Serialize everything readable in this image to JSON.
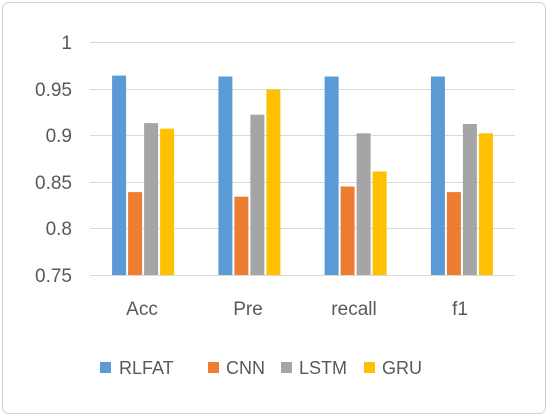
{
  "chart_data": {
    "type": "bar",
    "categories": [
      "Acc",
      "Pre",
      "recall",
      "f1"
    ],
    "series": [
      {
        "name": "RLFAT",
        "color": "#5b9bd5",
        "values": [
          0.964,
          0.963,
          0.963,
          0.963
        ]
      },
      {
        "name": "CNN",
        "color": "#ed7d31",
        "values": [
          0.839,
          0.834,
          0.845,
          0.839
        ]
      },
      {
        "name": "LSTM",
        "color": "#a5a5a5",
        "values": [
          0.913,
          0.922,
          0.902,
          0.912
        ]
      },
      {
        "name": "GRU",
        "color": "#ffc000",
        "values": [
          0.907,
          0.949,
          0.861,
          0.902
        ]
      }
    ],
    "yticks": [
      "1",
      "0.95",
      "0.9",
      "0.85",
      "0.8",
      "0.75"
    ],
    "ylim": [
      0.75,
      1.0
    ],
    "grid": true,
    "legend_position": "bottom",
    "title": "",
    "xlabel": "",
    "ylabel": ""
  }
}
